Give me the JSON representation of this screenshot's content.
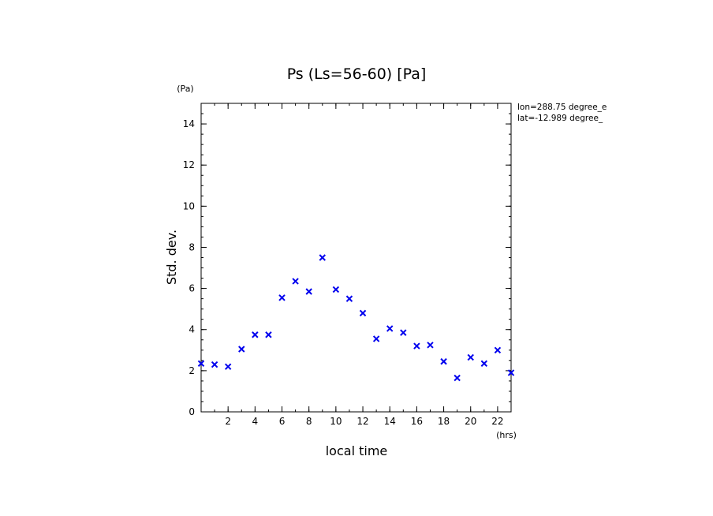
{
  "chart_data": {
    "type": "scatter",
    "title": "Ps (Ls=56-60) [Pa]",
    "xlabel": "local time",
    "ylabel": "Std. dev.",
    "x_unit": "(hrs)",
    "y_unit": "(Pa)",
    "xlim": [
      0,
      23
    ],
    "ylim": [
      0,
      15
    ],
    "xticks": [
      2,
      4,
      6,
      8,
      10,
      12,
      14,
      16,
      18,
      20,
      22
    ],
    "yticks": [
      0,
      2,
      4,
      6,
      8,
      10,
      12,
      14
    ],
    "marker": "x",
    "marker_color": "#0000ee",
    "annotations": [
      "lon=288.75 degree_e",
      "lat=-12.989 degree_"
    ],
    "series": [
      {
        "x": [
          0,
          1,
          2,
          3,
          4,
          5,
          6,
          7,
          8,
          9,
          10,
          11,
          12,
          13,
          14,
          15,
          16,
          17,
          18,
          19,
          20,
          21,
          22,
          23
        ],
        "y": [
          2.35,
          2.3,
          2.2,
          3.05,
          3.75,
          3.75,
          5.55,
          6.35,
          5.85,
          7.5,
          5.95,
          5.5,
          4.8,
          3.55,
          4.05,
          3.85,
          3.2,
          3.25,
          2.45,
          1.65,
          2.65,
          2.35,
          3.0,
          1.9
        ]
      }
    ]
  }
}
